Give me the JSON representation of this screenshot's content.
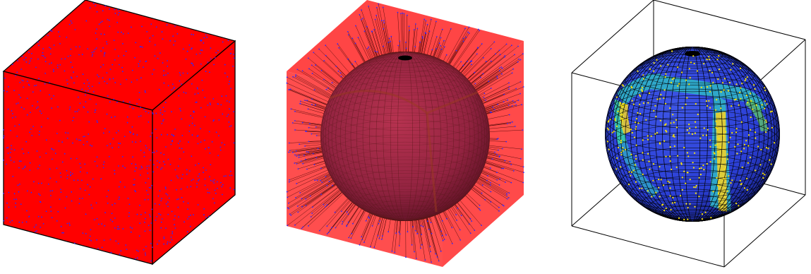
{
  "figure": {
    "panels": [
      {
        "id": "cube-points",
        "colors": {
          "face": "#ff0000",
          "edge": "#000000",
          "points": "#2a2aff"
        }
      },
      {
        "id": "projection",
        "colors": {
          "face": "#ff3b3b",
          "sphere": "#8a1f3a",
          "rays": "#3a0000",
          "points": "#2a2aff"
        }
      },
      {
        "id": "sphere-density",
        "colors": {
          "box": "#000000",
          "low": "#2b3fd6",
          "mid": "#2fa7c9",
          "high": "#f2d12a",
          "points": "#ffe600"
        }
      }
    ]
  }
}
